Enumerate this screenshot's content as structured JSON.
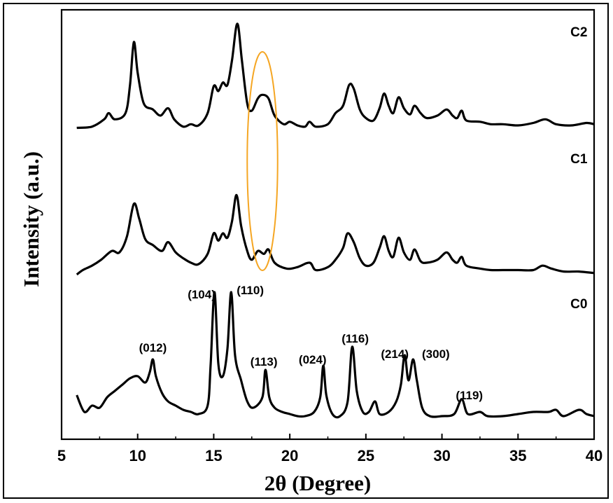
{
  "chart_data": {
    "type": "line",
    "xlabel": "2θ (Degree)",
    "ylabel": "Intensity (a.u.)",
    "xlim": [
      5,
      40
    ],
    "xticks": [
      5,
      10,
      15,
      20,
      25,
      30,
      35,
      40
    ],
    "xtick_labels": [
      "5",
      "10",
      "15",
      "20",
      "25",
      "30",
      "35",
      "40"
    ],
    "yticks": "none",
    "grid": false,
    "line_color": "#000000",
    "highlight": {
      "shape": "ellipse",
      "color": "#f5a623",
      "x_range": [
        17.2,
        19.2
      ]
    },
    "series": [
      {
        "name": "C2",
        "points": [
          [
            6,
            0.1
          ],
          [
            7,
            0.11
          ],
          [
            7.8,
            0.17
          ],
          [
            8.1,
            0.22
          ],
          [
            8.5,
            0.17
          ],
          [
            9.2,
            0.22
          ],
          [
            9.5,
            0.45
          ],
          [
            9.75,
            0.8
          ],
          [
            10,
            0.55
          ],
          [
            10.4,
            0.3
          ],
          [
            11,
            0.25
          ],
          [
            11.5,
            0.2
          ],
          [
            12,
            0.26
          ],
          [
            12.4,
            0.17
          ],
          [
            13,
            0.11
          ],
          [
            13.5,
            0.13
          ],
          [
            14,
            0.12
          ],
          [
            14.6,
            0.22
          ],
          [
            15,
            0.44
          ],
          [
            15.3,
            0.4
          ],
          [
            15.6,
            0.47
          ],
          [
            15.9,
            0.45
          ],
          [
            16.2,
            0.65
          ],
          [
            16.55,
            0.95
          ],
          [
            16.85,
            0.65
          ],
          [
            17.2,
            0.3
          ],
          [
            17.5,
            0.24
          ],
          [
            17.9,
            0.34
          ],
          [
            18.2,
            0.37
          ],
          [
            18.6,
            0.34
          ],
          [
            19,
            0.2
          ],
          [
            19.6,
            0.13
          ],
          [
            20,
            0.15
          ],
          [
            20.5,
            0.12
          ],
          [
            21,
            0.11
          ],
          [
            21.3,
            0.15
          ],
          [
            21.7,
            0.11
          ],
          [
            22.5,
            0.13
          ],
          [
            23,
            0.22
          ],
          [
            23.5,
            0.28
          ],
          [
            23.9,
            0.45
          ],
          [
            24.2,
            0.42
          ],
          [
            24.6,
            0.25
          ],
          [
            25,
            0.18
          ],
          [
            25.5,
            0.16
          ],
          [
            25.9,
            0.26
          ],
          [
            26.2,
            0.38
          ],
          [
            26.5,
            0.28
          ],
          [
            26.8,
            0.22
          ],
          [
            27.15,
            0.35
          ],
          [
            27.5,
            0.26
          ],
          [
            27.9,
            0.21
          ],
          [
            28.2,
            0.28
          ],
          [
            28.6,
            0.22
          ],
          [
            29,
            0.18
          ],
          [
            29.7,
            0.2
          ],
          [
            30.3,
            0.25
          ],
          [
            30.7,
            0.2
          ],
          [
            31,
            0.18
          ],
          [
            31.3,
            0.24
          ],
          [
            31.6,
            0.16
          ],
          [
            32.5,
            0.15
          ],
          [
            33.2,
            0.13
          ],
          [
            34,
            0.13
          ],
          [
            35,
            0.12
          ],
          [
            36,
            0.14
          ],
          [
            36.8,
            0.17
          ],
          [
            37.5,
            0.13
          ],
          [
            38.5,
            0.12
          ],
          [
            39.5,
            0.14
          ],
          [
            40,
            0.13
          ]
        ]
      },
      {
        "name": "C1",
        "points": [
          [
            6,
            0.02
          ],
          [
            6.4,
            0.05
          ],
          [
            7,
            0.08
          ],
          [
            7.6,
            0.12
          ],
          [
            8.3,
            0.18
          ],
          [
            8.8,
            0.17
          ],
          [
            9.3,
            0.28
          ],
          [
            9.75,
            0.5
          ],
          [
            10.1,
            0.4
          ],
          [
            10.5,
            0.26
          ],
          [
            11,
            0.22
          ],
          [
            11.6,
            0.18
          ],
          [
            12,
            0.24
          ],
          [
            12.5,
            0.17
          ],
          [
            13,
            0.13
          ],
          [
            13.5,
            0.1
          ],
          [
            14,
            0.09
          ],
          [
            14.6,
            0.16
          ],
          [
            15,
            0.3
          ],
          [
            15.3,
            0.25
          ],
          [
            15.6,
            0.3
          ],
          [
            15.9,
            0.27
          ],
          [
            16.2,
            0.38
          ],
          [
            16.5,
            0.56
          ],
          [
            16.8,
            0.35
          ],
          [
            17.2,
            0.18
          ],
          [
            17.5,
            0.12
          ],
          [
            17.9,
            0.18
          ],
          [
            18.3,
            0.16
          ],
          [
            18.6,
            0.19
          ],
          [
            19,
            0.1
          ],
          [
            19.8,
            0.06
          ],
          [
            20.5,
            0.07
          ],
          [
            21.3,
            0.1
          ],
          [
            21.7,
            0.05
          ],
          [
            22.5,
            0.07
          ],
          [
            23,
            0.12
          ],
          [
            23.5,
            0.2
          ],
          [
            23.8,
            0.3
          ],
          [
            24.2,
            0.24
          ],
          [
            24.6,
            0.13
          ],
          [
            25,
            0.08
          ],
          [
            25.5,
            0.1
          ],
          [
            25.9,
            0.2
          ],
          [
            26.2,
            0.28
          ],
          [
            26.5,
            0.18
          ],
          [
            26.8,
            0.14
          ],
          [
            27.15,
            0.27
          ],
          [
            27.5,
            0.17
          ],
          [
            27.9,
            0.12
          ],
          [
            28.2,
            0.19
          ],
          [
            28.6,
            0.11
          ],
          [
            29,
            0.1
          ],
          [
            29.7,
            0.12
          ],
          [
            30.3,
            0.17
          ],
          [
            30.7,
            0.12
          ],
          [
            31,
            0.1
          ],
          [
            31.3,
            0.14
          ],
          [
            31.6,
            0.08
          ],
          [
            32.5,
            0.06
          ],
          [
            33.2,
            0.05
          ],
          [
            34,
            0.05
          ],
          [
            35,
            0.05
          ],
          [
            36,
            0.05
          ],
          [
            36.6,
            0.08
          ],
          [
            37.2,
            0.06
          ],
          [
            38,
            0.04
          ],
          [
            39,
            0.04
          ],
          [
            40,
            0.03
          ]
        ]
      },
      {
        "name": "C0",
        "points": [
          [
            6,
            0.13
          ],
          [
            6.5,
            0.05
          ],
          [
            7,
            0.08
          ],
          [
            7.5,
            0.07
          ],
          [
            8,
            0.12
          ],
          [
            8.5,
            0.15
          ],
          [
            9,
            0.18
          ],
          [
            9.5,
            0.21
          ],
          [
            10,
            0.22
          ],
          [
            10.5,
            0.19
          ],
          [
            10.8,
            0.24
          ],
          [
            11,
            0.3
          ],
          [
            11.2,
            0.22
          ],
          [
            11.6,
            0.14
          ],
          [
            12,
            0.1
          ],
          [
            12.5,
            0.08
          ],
          [
            13,
            0.06
          ],
          [
            13.5,
            0.05
          ],
          [
            14,
            0.04
          ],
          [
            14.6,
            0.08
          ],
          [
            14.8,
            0.28
          ],
          [
            15.05,
            0.62
          ],
          [
            15.3,
            0.28
          ],
          [
            15.6,
            0.22
          ],
          [
            15.9,
            0.35
          ],
          [
            16.15,
            0.62
          ],
          [
            16.4,
            0.32
          ],
          [
            16.8,
            0.2
          ],
          [
            17.2,
            0.1
          ],
          [
            17.6,
            0.07
          ],
          [
            18.2,
            0.12
          ],
          [
            18.4,
            0.25
          ],
          [
            18.65,
            0.12
          ],
          [
            19,
            0.07
          ],
          [
            19.5,
            0.05
          ],
          [
            20,
            0.04
          ],
          [
            20.5,
            0.03
          ],
          [
            21,
            0.03
          ],
          [
            21.6,
            0.05
          ],
          [
            22,
            0.12
          ],
          [
            22.2,
            0.27
          ],
          [
            22.4,
            0.13
          ],
          [
            22.8,
            0.04
          ],
          [
            23.3,
            0.03
          ],
          [
            23.8,
            0.1
          ],
          [
            24.1,
            0.36
          ],
          [
            24.4,
            0.15
          ],
          [
            24.8,
            0.05
          ],
          [
            25.2,
            0.05
          ],
          [
            25.6,
            0.1
          ],
          [
            25.9,
            0.04
          ],
          [
            26.5,
            0.05
          ],
          [
            27,
            0.1
          ],
          [
            27.3,
            0.18
          ],
          [
            27.55,
            0.32
          ],
          [
            27.8,
            0.2
          ],
          [
            28.1,
            0.3
          ],
          [
            28.35,
            0.2
          ],
          [
            28.7,
            0.07
          ],
          [
            29.2,
            0.03
          ],
          [
            30,
            0.03
          ],
          [
            30.8,
            0.04
          ],
          [
            31.3,
            0.11
          ],
          [
            31.7,
            0.04
          ],
          [
            32.5,
            0.05
          ],
          [
            33,
            0.03
          ],
          [
            34,
            0.03
          ],
          [
            35,
            0.04
          ],
          [
            36,
            0.05
          ],
          [
            37,
            0.05
          ],
          [
            37.5,
            0.06
          ],
          [
            38,
            0.03
          ],
          [
            39,
            0.06
          ],
          [
            39.5,
            0.04
          ],
          [
            40,
            0.03
          ]
        ]
      }
    ],
    "series_labels": [
      {
        "text": "C2",
        "x": 39.0,
        "y": 0.85,
        "series": 0
      },
      {
        "text": "C1",
        "x": 39.0,
        "y": 0.9,
        "series": 1
      },
      {
        "text": "C0",
        "x": 39.0,
        "y": 0.78,
        "series": 2
      }
    ],
    "peak_labels": [
      {
        "text": "(012)",
        "x": 11.0
      },
      {
        "text": "(104)",
        "x": 14.2
      },
      {
        "text": "(110)",
        "x": 17.4
      },
      {
        "text": "(113)",
        "x": 18.3
      },
      {
        "text": "(024)",
        "x": 21.5
      },
      {
        "text": "(116)",
        "x": 24.3
      },
      {
        "text": "(214)",
        "x": 26.9
      },
      {
        "text": "(300)",
        "x": 29.6
      },
      {
        "text": "(119)",
        "x": 31.8
      }
    ]
  }
}
